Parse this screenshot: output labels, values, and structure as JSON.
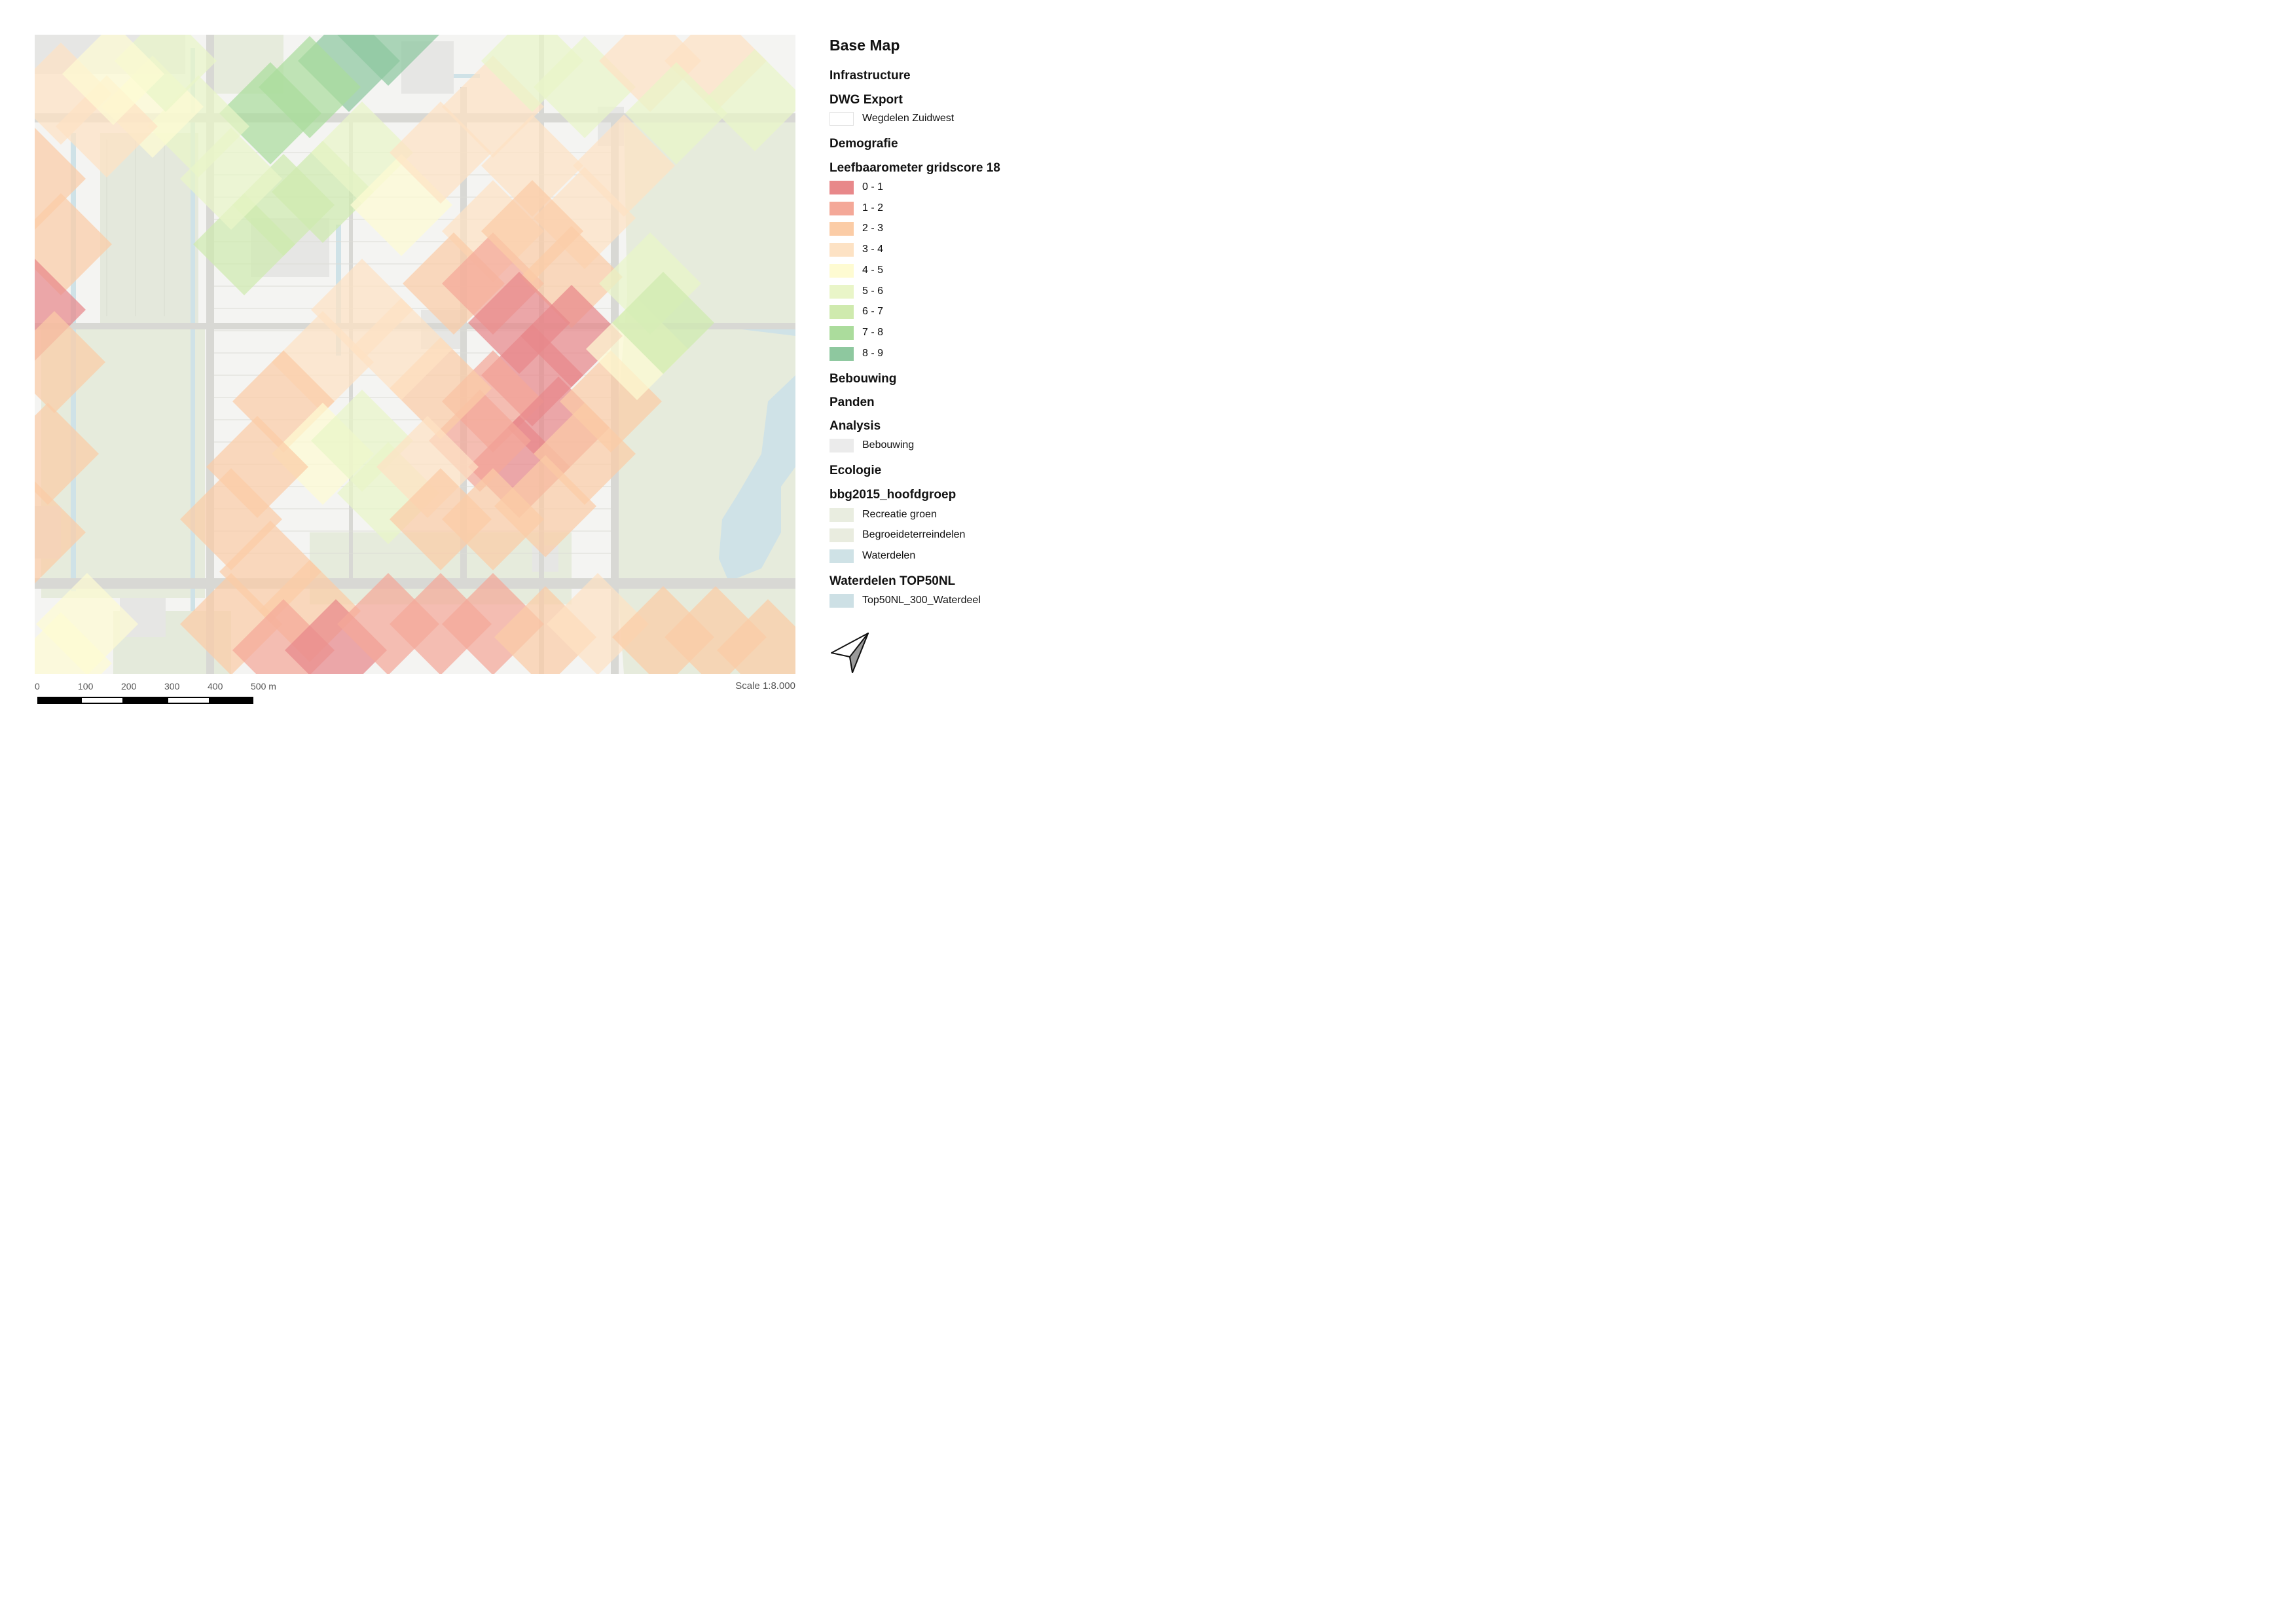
{
  "legend": {
    "title": "Base Map",
    "groups": {
      "infrastructure": "Infrastructure",
      "dwg_export": "DWG Export",
      "demografie": "Demografie",
      "leefbaarometer": "Leefbaarometer gridscore 18",
      "bebouwing": "Bebouwing",
      "panden": "Panden",
      "analysis": "Analysis",
      "ecologie": "Ecologie",
      "bbg2015": "bbg2015_hoofdgroep",
      "waterdelen_top50nl": "Waterdelen TOP50NL"
    },
    "dwg_items": [
      {
        "label": "Wegdelen Zuidwest",
        "color": "#ffffff"
      }
    ],
    "leefbaarometer_classes": [
      {
        "label": "0 - 1",
        "color": "#e8888a"
      },
      {
        "label": "1 - 2",
        "color": "#f4a898"
      },
      {
        "label": "2 - 3",
        "color": "#fbcca6"
      },
      {
        "label": "3 - 4",
        "color": "#fde2c4"
      },
      {
        "label": "4 - 5",
        "color": "#fefbd2"
      },
      {
        "label": "5 - 6",
        "color": "#e9f5c8"
      },
      {
        "label": "6 - 7",
        "color": "#cfeaae"
      },
      {
        "label": "7 - 8",
        "color": "#abdc9c"
      },
      {
        "label": "8 - 9",
        "color": "#8ec89f"
      }
    ],
    "analysis_items": [
      {
        "label": "Bebouwing",
        "color": "#ebebeb"
      }
    ],
    "bbg_items": [
      {
        "label": "Recreatie groen",
        "color": "#e9ede0"
      },
      {
        "label": "Begroeideterreindelen",
        "color": "#e9ecdf"
      },
      {
        "label": "Waterdelen",
        "color": "#cfe2e6"
      }
    ],
    "top50_items": [
      {
        "label": "Top50NL_300_Waterdeel",
        "color": "#cde0e5"
      }
    ]
  },
  "scalebar": {
    "ticks": [
      "0",
      "100",
      "200",
      "300",
      "400",
      "500 m"
    ]
  },
  "scale_text": "Scale 1:8.000",
  "north_arrow_icon": "north-arrow-icon",
  "map_colors": {
    "background": "#f4f4f2",
    "green_area": "#e6ebdc",
    "water": "#cfe2e7",
    "building": "#e6e6e4",
    "road": "#d8d8d4"
  }
}
